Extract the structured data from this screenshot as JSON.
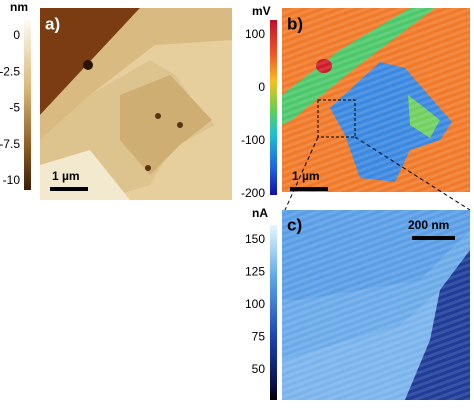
{
  "panels": [
    {
      "label": "a)",
      "unit": "nm",
      "ticks": [
        "0",
        "-2.5",
        "-5",
        "-7.5",
        "-10"
      ],
      "scale_bar": "1 µm"
    },
    {
      "label": "b)",
      "unit": "mV",
      "ticks": [
        "100",
        "0",
        "-100",
        "-200"
      ],
      "scale_bar": "1 µm"
    },
    {
      "label": "c)",
      "unit": "nA",
      "ticks": [
        "150",
        "125",
        "100",
        "75",
        "50"
      ],
      "scale_bar": "200 nm"
    }
  ]
}
